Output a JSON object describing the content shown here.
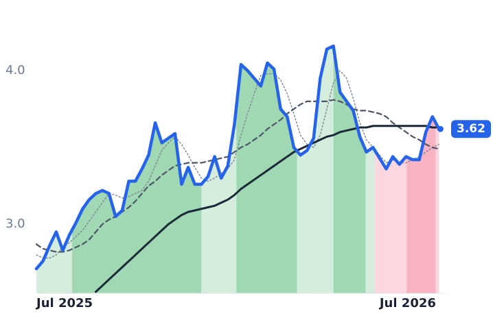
{
  "chart_data": {
    "type": "line",
    "x": [
      0,
      1,
      2,
      3,
      4,
      5,
      6,
      7,
      8,
      9,
      10,
      11,
      12,
      13,
      14,
      15,
      16,
      17,
      18,
      19,
      20,
      21,
      22,
      23,
      24,
      25,
      26,
      27,
      28,
      29,
      30,
      31,
      32,
      33,
      34,
      35,
      36,
      37,
      38,
      39,
      40,
      41,
      42,
      43,
      44,
      45,
      46,
      47,
      48,
      49,
      50,
      51,
      52,
      53,
      54,
      55,
      56,
      57,
      58,
      59,
      60,
      61
    ],
    "series": [
      {
        "color": "#2563eb",
        "values": [
          2.71,
          2.76,
          2.86,
          2.95,
          2.83,
          2.93,
          3.01,
          3.1,
          3.16,
          3.2,
          3.22,
          3.2,
          3.05,
          3.09,
          3.28,
          3.28,
          3.36,
          3.45,
          3.66,
          3.53,
          3.56,
          3.59,
          3.26,
          3.37,
          3.26,
          3.26,
          3.31,
          3.44,
          3.3,
          3.38,
          3.65,
          4.04,
          4.0,
          3.95,
          3.9,
          4.05,
          4.01,
          3.75,
          3.7,
          3.5,
          3.45,
          3.48,
          3.56,
          3.95,
          4.14,
          4.16,
          3.86,
          3.8,
          3.74,
          3.57,
          3.47,
          3.5,
          3.43,
          3.36,
          3.44,
          3.39,
          3.44,
          3.42,
          3.42,
          3.6,
          3.7,
          3.62
        ],
        "value_labels_last": "3.62"
      },
      {
        "color": "#1b2838",
        "values": [
          null,
          null,
          null,
          null,
          null,
          null,
          null,
          null,
          null,
          2.56,
          2.6,
          2.64,
          2.68,
          2.72,
          2.76,
          2.8,
          2.84,
          2.88,
          2.92,
          2.96,
          3.0,
          3.03,
          3.06,
          3.08,
          3.09,
          3.1,
          3.11,
          3.12,
          3.14,
          3.16,
          3.19,
          3.23,
          3.26,
          3.29,
          3.32,
          3.35,
          3.38,
          3.41,
          3.44,
          3.47,
          3.49,
          3.51,
          3.53,
          3.55,
          3.57,
          3.58,
          3.6,
          3.61,
          3.62,
          3.63,
          3.63,
          3.64,
          3.64,
          3.64,
          3.64,
          3.64,
          3.64,
          3.64,
          3.64,
          3.64,
          3.63,
          3.63
        ]
      },
      {
        "color": "#4b5566",
        "style": "dashed",
        "values": [
          2.87,
          2.84,
          2.83,
          2.82,
          2.82,
          2.83,
          2.85,
          2.87,
          2.9,
          2.95,
          3.0,
          3.03,
          3.05,
          3.08,
          3.11,
          3.15,
          3.2,
          3.25,
          3.28,
          3.32,
          3.35,
          3.38,
          3.39,
          3.4,
          3.4,
          3.4,
          3.41,
          3.42,
          3.43,
          3.44,
          3.47,
          3.5,
          3.52,
          3.55,
          3.58,
          3.62,
          3.65,
          3.68,
          3.72,
          3.75,
          3.78,
          3.8,
          3.8,
          3.8,
          3.8,
          3.81,
          3.8,
          3.78,
          3.75,
          3.74,
          3.74,
          3.73,
          3.72,
          3.7,
          3.66,
          3.63,
          3.6,
          3.57,
          3.55,
          3.52,
          3.5,
          3.49
        ]
      },
      {
        "color": "#7a8595",
        "style": "dotted",
        "values": [
          2.8,
          2.78,
          2.78,
          2.8,
          2.85,
          2.88,
          2.92,
          2.96,
          3.02,
          3.08,
          3.14,
          3.2,
          3.19,
          3.17,
          3.18,
          3.2,
          3.22,
          3.28,
          3.38,
          3.48,
          3.53,
          3.57,
          3.52,
          3.45,
          3.37,
          3.3,
          3.28,
          3.3,
          3.33,
          3.36,
          3.42,
          3.58,
          3.72,
          3.85,
          3.97,
          3.98,
          3.98,
          3.94,
          3.85,
          3.72,
          3.58,
          3.52,
          3.5,
          3.58,
          3.75,
          3.92,
          4.0,
          3.95,
          3.82,
          3.66,
          3.55,
          3.5,
          3.45,
          3.4,
          3.42,
          3.4,
          3.4,
          3.42,
          3.44,
          3.47,
          3.5,
          3.52
        ]
      }
    ],
    "bands": [
      {
        "start": 0,
        "end": 5.4,
        "color": "#d4eddc"
      },
      {
        "start": 5.4,
        "end": 25.0,
        "color": "#9fd8b3"
      },
      {
        "start": 25.0,
        "end": 30.3,
        "color": "#d4eddc"
      },
      {
        "start": 30.3,
        "end": 39.5,
        "color": "#9fd8b3"
      },
      {
        "start": 39.5,
        "end": 45.0,
        "color": "#d4eddc"
      },
      {
        "start": 45.0,
        "end": 49.9,
        "color": "#9fd8b3"
      },
      {
        "start": 49.9,
        "end": 51.3,
        "color": "#d4eddc"
      },
      {
        "start": 51.3,
        "end": 56.1,
        "color": "#fcd7df"
      },
      {
        "start": 56.1,
        "end": 60.5,
        "color": "#f8b4c2"
      },
      {
        "start": 60.5,
        "end": 61.6,
        "color": "#fcd7df"
      }
    ],
    "xlim": [
      0,
      62
    ],
    "xticks": [
      {
        "value": 0,
        "label": "Jul 2025"
      },
      {
        "value": 52,
        "label": "Jul 2026"
      }
    ],
    "ylim": [
      2.55,
      4.46
    ],
    "yticks": [
      {
        "value": 3,
        "label": "3.0"
      },
      {
        "value": 4,
        "label": "4.0"
      }
    ]
  }
}
